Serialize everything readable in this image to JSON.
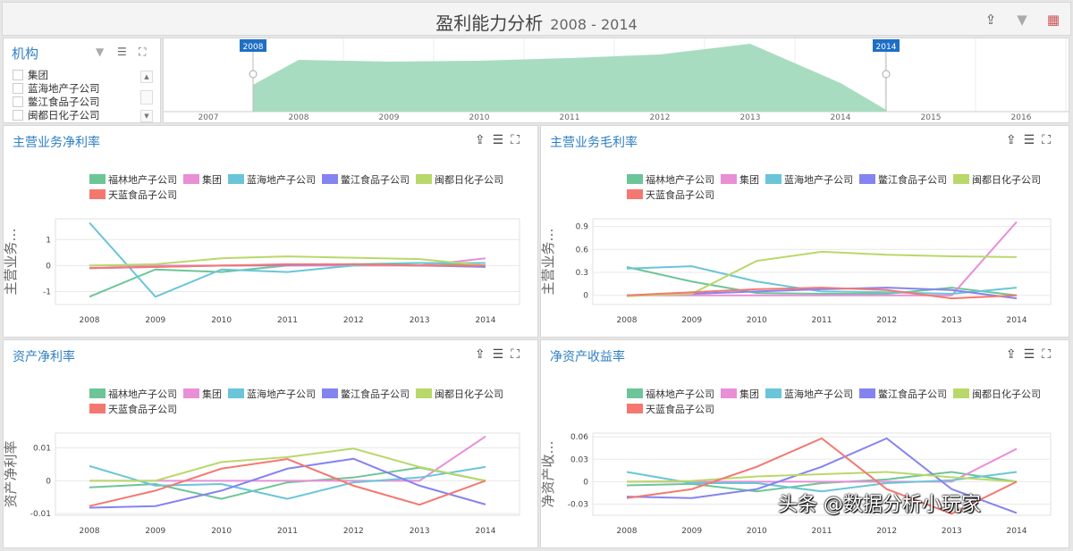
{
  "header": {
    "title": "盈利能力分析",
    "range": "2008 - 2014",
    "icons": [
      "share-icon",
      "clear-filter-icon",
      "calendar-settings-icon"
    ]
  },
  "filter": {
    "title": "机构",
    "items": [
      "集团",
      "蓝海地产子公司",
      "鳖江食品子公司",
      "闽都日化子公司"
    ]
  },
  "timeline": {
    "years": [
      "2007",
      "2008",
      "2009",
      "2010",
      "2011",
      "2012",
      "2013",
      "2014",
      "2015",
      "2016"
    ],
    "start": "2008",
    "end": "2014",
    "fill": "#a8dcc0"
  },
  "series_names": [
    "福林地产子公司",
    "集团",
    "蓝海地产子公司",
    "鳖江食品子公司",
    "闽都日化子公司",
    "天蓝食品子公司"
  ],
  "colors": [
    "#6cc597",
    "#e88fd6",
    "#6ac5d8",
    "#8484f0",
    "#b9d86a",
    "#f47870"
  ],
  "watermark": "头条 @数据分析小玩家",
  "chart_data": [
    {
      "type": "line",
      "title": "主营业务净利率",
      "ylabel": "主营业务…",
      "categories": [
        "2008",
        "2009",
        "2010",
        "2011",
        "2012",
        "2013",
        "2014"
      ],
      "ylim": [
        -1.5,
        1.8
      ],
      "yticks": [
        "1",
        "0",
        "-1"
      ],
      "ytickvals": [
        1,
        0,
        -1
      ],
      "series": [
        {
          "name": "福林地产子公司",
          "values": [
            -1.2,
            -0.15,
            -0.25,
            0,
            0.05,
            0.1,
            0
          ]
        },
        {
          "name": "集团",
          "values": [
            0,
            0,
            0,
            0,
            0,
            0,
            0.28
          ]
        },
        {
          "name": "蓝海地产子公司",
          "values": [
            1.65,
            -1.2,
            -0.15,
            -0.25,
            0,
            0.1,
            0.1
          ]
        },
        {
          "name": "鳖江食品子公司",
          "values": [
            -0.1,
            -0.05,
            0,
            0.02,
            0.05,
            0,
            -0.05
          ]
        },
        {
          "name": "闽都日化子公司",
          "values": [
            0,
            0.05,
            0.28,
            0.35,
            0.3,
            0.25,
            0
          ]
        },
        {
          "name": "天蓝食品子公司",
          "values": [
            -0.1,
            -0.05,
            0,
            0.05,
            0.05,
            0,
            0
          ]
        }
      ]
    },
    {
      "type": "line",
      "title": "主营业务毛利率",
      "ylabel": "主营业务…",
      "categories": [
        "2008",
        "2009",
        "2010",
        "2011",
        "2012",
        "2013",
        "2014"
      ],
      "ylim": [
        -0.12,
        1.0
      ],
      "yticks": [
        "0.9",
        "0.6",
        "0.3",
        "0"
      ],
      "ytickvals": [
        0.9,
        0.6,
        0.3,
        0
      ],
      "series": [
        {
          "name": "福林地产子公司",
          "values": [
            0.37,
            0.18,
            0.03,
            0.02,
            0.02,
            0.1,
            0
          ]
        },
        {
          "name": "集团",
          "values": [
            0,
            0,
            0,
            0,
            0,
            0,
            0.96
          ]
        },
        {
          "name": "蓝海地产子公司",
          "values": [
            0.35,
            0.38,
            0.18,
            0.05,
            0.04,
            0.02,
            0.1
          ]
        },
        {
          "name": "鳖江食品子公司",
          "values": [
            0,
            0.02,
            0.05,
            0.08,
            0.1,
            0.07,
            -0.04
          ]
        },
        {
          "name": "闽都日化子公司",
          "values": [
            -0.01,
            0.02,
            0.45,
            0.57,
            0.53,
            0.51,
            0.5
          ]
        },
        {
          "name": "天蓝食品子公司",
          "values": [
            0,
            0.04,
            0.08,
            0.1,
            0.07,
            -0.04,
            0
          ]
        }
      ]
    },
    {
      "type": "line",
      "title": "资产净利率",
      "ylabel": "资产净利率",
      "categories": [
        "2008",
        "2009",
        "2010",
        "2011",
        "2012",
        "2013",
        "2014"
      ],
      "ylim": [
        -0.0105,
        0.0145
      ],
      "yticks": [
        "0.01",
        "0",
        "-0.01"
      ],
      "ytickvals": [
        0.01,
        0,
        -0.01
      ],
      "series": [
        {
          "name": "福林地产子公司",
          "values": [
            -0.002,
            -0.001,
            -0.0055,
            -0.0005,
            0.001,
            0.004,
            0
          ]
        },
        {
          "name": "集团",
          "values": [
            0,
            0,
            0,
            0,
            0,
            0,
            0.0135
          ]
        },
        {
          "name": "蓝海地产子公司",
          "values": [
            0.0045,
            -0.0015,
            -0.001,
            -0.0055,
            -0.0005,
            0.001,
            0.0042
          ]
        },
        {
          "name": "鳖江食品子公司",
          "values": [
            -0.0082,
            -0.0077,
            -0.003,
            0.0037,
            0.0067,
            -0.0015,
            -0.0072
          ]
        },
        {
          "name": "闽都日化子公司",
          "values": [
            0,
            0,
            0.0057,
            0.0072,
            0.0098,
            0.0042,
            0
          ]
        },
        {
          "name": "天蓝食品子公司",
          "values": [
            -0.0077,
            -0.003,
            0.0037,
            0.0066,
            -0.0015,
            -0.0073,
            0
          ]
        }
      ]
    },
    {
      "type": "line",
      "title": "净资产收益率",
      "ylabel": "净资产收…",
      "categories": [
        "2008",
        "2009",
        "2010",
        "2011",
        "2012",
        "2013",
        "2014"
      ],
      "ylim": [
        -0.045,
        0.065
      ],
      "yticks": [
        "0.06",
        "0.03",
        "0",
        "-0.03"
      ],
      "ytickvals": [
        0.06,
        0.03,
        0,
        -0.03
      ],
      "series": [
        {
          "name": "福林地产子公司",
          "values": [
            -0.005,
            -0.003,
            -0.013,
            -0.002,
            0.003,
            0.013,
            0
          ]
        },
        {
          "name": "集团",
          "values": [
            0,
            0,
            0,
            0,
            0,
            0,
            0.044
          ]
        },
        {
          "name": "蓝海地产子公司",
          "values": [
            0.013,
            -0.002,
            -0.002,
            -0.013,
            -0.002,
            0.002,
            0.013
          ]
        },
        {
          "name": "鳖江食品子公司",
          "values": [
            -0.02,
            -0.022,
            -0.01,
            0.02,
            0.058,
            -0.01,
            -0.042
          ]
        },
        {
          "name": "闽都日化子公司",
          "values": [
            0,
            0.001,
            0.007,
            0.01,
            0.013,
            0.006,
            0
          ]
        },
        {
          "name": "天蓝食品子公司",
          "values": [
            -0.022,
            -0.01,
            0.02,
            0.058,
            -0.01,
            -0.043,
            0
          ]
        }
      ]
    }
  ]
}
